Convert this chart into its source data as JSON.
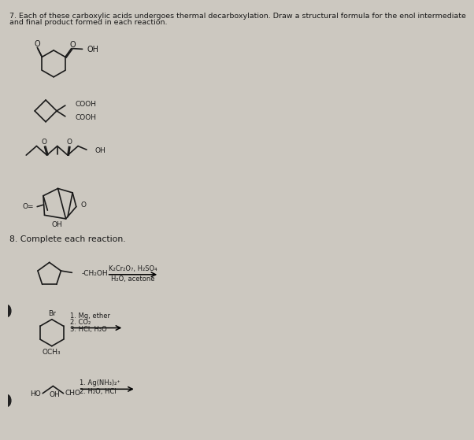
{
  "bg_color": "#ccc8c0",
  "text_color": "#1a1a1a",
  "title_line1": "7. Each of these carboxylic acids undergoes thermal decarboxylation. Draw a structural formula for the enol intermediate",
  "title_line2": "and final product formed in each reaction.",
  "section8": "8. Complete each reaction.",
  "title_fs": 6.8,
  "mol_fs": 7.5,
  "reagent_fs": 6.0
}
